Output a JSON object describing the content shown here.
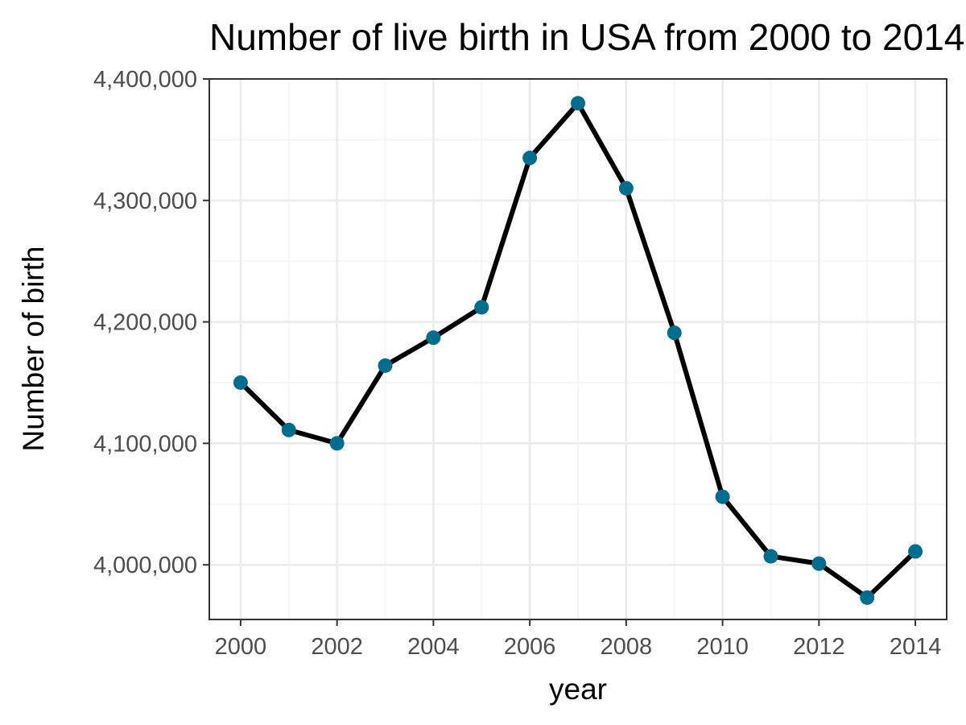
{
  "chart_data": {
    "type": "line",
    "title": "Number of live birth in USA from 2000 to 2014",
    "xlabel": "year",
    "ylabel": "Number of birth",
    "x": [
      2000,
      2001,
      2002,
      2003,
      2004,
      2005,
      2006,
      2007,
      2008,
      2009,
      2010,
      2011,
      2012,
      2013,
      2014
    ],
    "series": [
      {
        "values": [
          4150000,
          4111000,
          4100000,
          4164000,
          4187000,
          4212000,
          4335000,
          4380000,
          4310000,
          4191000,
          4056000,
          4007000,
          4001000,
          3973000,
          4011000
        ]
      }
    ],
    "xlim": [
      1999.35,
      2014.65
    ],
    "ylim": [
      3955000,
      4400000
    ],
    "x_ticks": [
      2000,
      2002,
      2004,
      2006,
      2008,
      2010,
      2012,
      2014
    ],
    "x_tick_labels": [
      "2000",
      "2002",
      "2004",
      "2006",
      "2008",
      "2010",
      "2012",
      "2014"
    ],
    "y_ticks": [
      4000000,
      4100000,
      4200000,
      4300000,
      4400000
    ],
    "y_tick_labels": [
      "4,000,000",
      "4,100,000",
      "4,200,000",
      "4,300,000",
      "4,400,000"
    ],
    "grid": true,
    "legend": "none",
    "colors": {
      "line": "#000000",
      "point": "#006d8f",
      "grid_major": "#ebebeb",
      "grid_minor": "#f3f3f3",
      "border": "#333333",
      "tick_text": "#4d4d4d"
    }
  }
}
